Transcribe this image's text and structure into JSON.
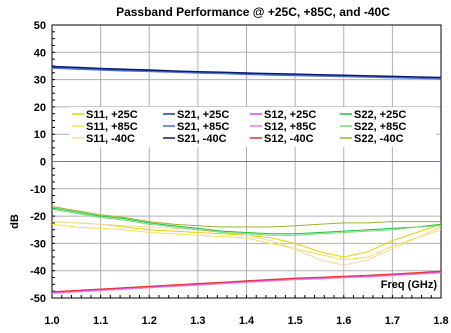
{
  "chart_data": {
    "type": "line",
    "title": "Passband Performance @ +25C, +85C, and -40C",
    "xlabel": "Freq (GHz)",
    "ylabel": "dB",
    "xlim": [
      1.0,
      1.8
    ],
    "ylim": [
      -50,
      50
    ],
    "x_ticks": [
      "1.0",
      "1.1",
      "1.2",
      "1.3",
      "1.4",
      "1.5",
      "1.6",
      "1.7",
      "1.8"
    ],
    "y_ticks": [
      "50",
      "40",
      "30",
      "20",
      "10",
      "0",
      "-10",
      "-20",
      "-30",
      "-40",
      "-50"
    ],
    "grid": true,
    "legend_placement": "upper-center",
    "legend_columns": 4,
    "x": [
      1.0,
      1.05,
      1.1,
      1.15,
      1.2,
      1.25,
      1.3,
      1.35,
      1.4,
      1.45,
      1.5,
      1.55,
      1.6,
      1.65,
      1.7,
      1.75,
      1.8
    ],
    "series": [
      {
        "name": "S11, +25C",
        "color": "#e8d000",
        "values": [
          -22,
          -22.5,
          -23,
          -24,
          -25,
          -25.5,
          -26,
          -26.5,
          -27,
          -28,
          -30,
          -33,
          -35,
          -33,
          -29,
          -26,
          -23
        ]
      },
      {
        "name": "S11, +85C",
        "color": "#f5e050",
        "values": [
          -23,
          -24,
          -24.5,
          -25,
          -26,
          -26.5,
          -27,
          -27.5,
          -28,
          -30,
          -32,
          -34,
          -36,
          -35,
          -31,
          -28,
          -24
        ]
      },
      {
        "name": "S11, -40C",
        "color": "#f5d8a0",
        "values": [
          -22,
          -22.5,
          -23,
          -23.5,
          -24,
          -24.5,
          -25,
          -25.5,
          -27,
          -29,
          -32,
          -36,
          -38,
          -36,
          -32,
          -28,
          -25
        ]
      },
      {
        "name": "S21, +25C",
        "color": "#1a3fa8",
        "values": [
          34.5,
          34.2,
          33.8,
          33.5,
          33.3,
          33.0,
          32.7,
          32.5,
          32.2,
          32.0,
          31.8,
          31.6,
          31.4,
          31.2,
          31.0,
          30.8,
          30.6
        ]
      },
      {
        "name": "S21, +85C",
        "color": "#4a6fd0",
        "values": [
          34.2,
          33.9,
          33.5,
          33.2,
          33.0,
          32.7,
          32.4,
          32.2,
          31.9,
          31.7,
          31.5,
          31.3,
          31.1,
          30.9,
          30.7,
          30.5,
          30.3
        ]
      },
      {
        "name": "S21, -40C",
        "color": "#0a1a70",
        "values": [
          34.8,
          34.5,
          34.1,
          33.8,
          33.5,
          33.2,
          32.9,
          32.7,
          32.4,
          32.2,
          32.0,
          31.8,
          31.6,
          31.4,
          31.2,
          31.0,
          30.8
        ]
      },
      {
        "name": "S12, +25C",
        "color": "#e040e0",
        "values": [
          -48,
          -47.5,
          -47,
          -46.5,
          -46,
          -45.5,
          -45,
          -44.5,
          -44,
          -43.5,
          -43,
          -42.7,
          -42.3,
          -42,
          -41.5,
          -41,
          -40.5
        ]
      },
      {
        "name": "S12, +85C",
        "color": "#f080c0",
        "values": [
          -48.3,
          -47.8,
          -47.3,
          -46.8,
          -46.3,
          -45.8,
          -45.3,
          -44.8,
          -44.3,
          -43.8,
          -43.3,
          -43,
          -42.6,
          -42.3,
          -41.8,
          -41.3,
          -40.8
        ]
      },
      {
        "name": "S12, -40C",
        "color": "#e03030",
        "values": [
          -47.7,
          -47.2,
          -46.7,
          -46.2,
          -45.7,
          -45.2,
          -44.7,
          -44.2,
          -43.7,
          -43.2,
          -42.7,
          -42.4,
          -42,
          -41.7,
          -41.2,
          -40.7,
          -40.2
        ]
      },
      {
        "name": "S22, +25C",
        "color": "#20c040",
        "values": [
          -17,
          -18.5,
          -20,
          -21,
          -22.5,
          -23.5,
          -24.5,
          -25.5,
          -26,
          -26.5,
          -26.5,
          -26,
          -25.5,
          -25,
          -24.5,
          -24,
          -23
        ]
      },
      {
        "name": "S22, +85C",
        "color": "#70e070",
        "values": [
          -17.5,
          -19,
          -20.5,
          -21.5,
          -23,
          -24,
          -25,
          -26,
          -26.5,
          -27,
          -27,
          -26.5,
          -26,
          -25.5,
          -25,
          -24,
          -23.5
        ]
      },
      {
        "name": "S22, -40C",
        "color": "#a0b030",
        "values": [
          -16.5,
          -18,
          -19.5,
          -20.5,
          -22,
          -23,
          -23.5,
          -24,
          -24,
          -24,
          -23.5,
          -23,
          -22.5,
          -22.5,
          -22,
          -22,
          -22
        ]
      },
      {
        "color": "#20a0a0",
        "values": [
          0,
          0,
          0,
          0,
          0,
          0,
          0,
          0,
          0,
          0,
          0,
          0,
          0,
          0,
          0,
          0,
          0
        ]
      }
    ]
  }
}
